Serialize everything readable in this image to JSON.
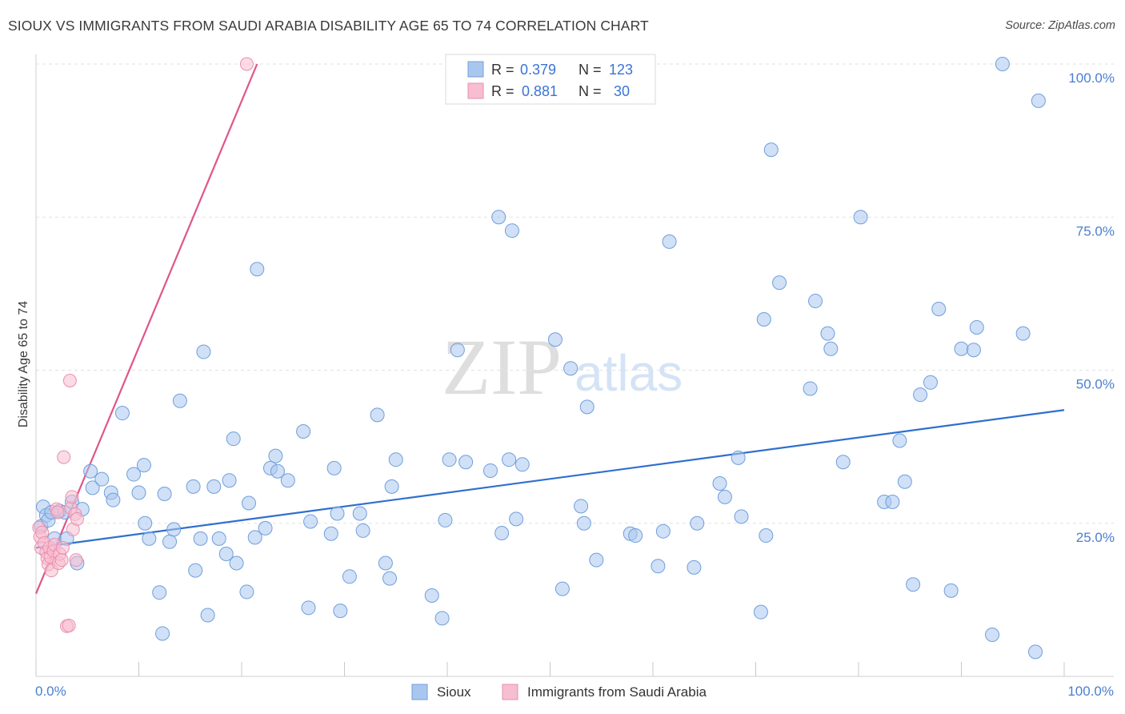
{
  "title": "SIOUX VS IMMIGRANTS FROM SAUDI ARABIA DISABILITY AGE 65 TO 74 CORRELATION CHART",
  "source": "Source: ZipAtlas.com",
  "watermark": {
    "zip": "ZIP",
    "atlas": "atlas"
  },
  "legend_top": {
    "rows": [
      {
        "r_label": "R =",
        "r_value": "0.379",
        "n_label": "N =",
        "n_value": "123"
      },
      {
        "r_label": "R =",
        "r_value": "0.881",
        "n_label": "N =",
        "n_value": "30"
      }
    ]
  },
  "legend_bottom": {
    "series_a": "Sioux",
    "series_b": "Immigrants from Saudi Arabia"
  },
  "colors": {
    "sioux_fill": "#a9c7ee",
    "sioux_stroke": "#6f9fdc",
    "sioux_line": "#2f6fcf",
    "saudi_fill": "#f7bdd0",
    "saudi_stroke": "#ea8fae",
    "saudi_line": "#e0558a",
    "grid": "#e2e2e2",
    "tick_text": "#4a7fd0"
  },
  "chart_data": {
    "type": "scatter",
    "title": "SIOUX VS IMMIGRANTS FROM SAUDI ARABIA DISABILITY AGE 65 TO 74 CORRELATION CHART",
    "xlabel": "",
    "ylabel": "Disability Age 65 to 74",
    "xlim": [
      0,
      100
    ],
    "ylim": [
      0,
      100
    ],
    "x_tick_labels": [
      "0.0%",
      "100.0%"
    ],
    "y_tick_labels": [
      "25.0%",
      "50.0%",
      "75.0%",
      "100.0%"
    ],
    "y_ticks": [
      25,
      50,
      75,
      100
    ],
    "grid": true,
    "legend_position": "top-center",
    "series": [
      {
        "name": "Sioux",
        "r": 0.379,
        "n": 123,
        "trend": {
          "x": [
            0,
            100
          ],
          "y": [
            21.0,
            43.5
          ]
        },
        "points": [
          [
            0.5,
            24.5
          ],
          [
            0.7,
            27.7
          ],
          [
            1.0,
            26.3
          ],
          [
            1.2,
            25.5
          ],
          [
            1.5,
            26.8
          ],
          [
            1.8,
            22.5
          ],
          [
            2.3,
            27.0
          ],
          [
            2.8,
            26.8
          ],
          [
            3.5,
            28.5
          ],
          [
            4.5,
            27.3
          ],
          [
            3.0,
            22.5
          ],
          [
            4.0,
            18.5
          ],
          [
            5.3,
            33.5
          ],
          [
            5.5,
            30.8
          ],
          [
            6.4,
            32.2
          ],
          [
            7.3,
            30.0
          ],
          [
            7.5,
            28.8
          ],
          [
            8.4,
            43.0
          ],
          [
            9.5,
            33.0
          ],
          [
            10.0,
            30.0
          ],
          [
            10.5,
            34.5
          ],
          [
            10.6,
            25.0
          ],
          [
            11.0,
            22.5
          ],
          [
            12.0,
            13.7
          ],
          [
            12.3,
            7.0
          ],
          [
            12.5,
            29.8
          ],
          [
            13.0,
            22.0
          ],
          [
            13.4,
            24.0
          ],
          [
            14.0,
            45.0
          ],
          [
            15.3,
            31.0
          ],
          [
            15.5,
            17.3
          ],
          [
            16.0,
            22.5
          ],
          [
            16.3,
            53.0
          ],
          [
            16.7,
            10.0
          ],
          [
            17.3,
            31.0
          ],
          [
            17.8,
            22.5
          ],
          [
            18.5,
            20.0
          ],
          [
            18.8,
            32.0
          ],
          [
            19.2,
            38.8
          ],
          [
            19.5,
            18.5
          ],
          [
            20.5,
            13.8
          ],
          [
            20.7,
            28.3
          ],
          [
            21.3,
            22.7
          ],
          [
            21.5,
            66.5
          ],
          [
            22.3,
            24.2
          ],
          [
            22.8,
            34.0
          ],
          [
            23.3,
            36.0
          ],
          [
            23.5,
            33.5
          ],
          [
            24.5,
            32.0
          ],
          [
            26.0,
            40.0
          ],
          [
            26.5,
            11.2
          ],
          [
            26.7,
            25.3
          ],
          [
            28.7,
            23.3
          ],
          [
            29.0,
            34.0
          ],
          [
            29.3,
            26.6
          ],
          [
            29.6,
            10.7
          ],
          [
            30.5,
            16.3
          ],
          [
            31.5,
            26.6
          ],
          [
            31.8,
            23.8
          ],
          [
            33.2,
            42.7
          ],
          [
            34.0,
            18.5
          ],
          [
            34.4,
            16.0
          ],
          [
            34.6,
            31.0
          ],
          [
            35.0,
            35.4
          ],
          [
            38.5,
            13.2
          ],
          [
            39.5,
            9.5
          ],
          [
            39.8,
            25.5
          ],
          [
            40.2,
            35.4
          ],
          [
            41.0,
            53.3
          ],
          [
            41.8,
            35.0
          ],
          [
            44.2,
            33.6
          ],
          [
            45.0,
            75.0
          ],
          [
            45.3,
            23.4
          ],
          [
            46.0,
            35.4
          ],
          [
            46.3,
            72.8
          ],
          [
            46.7,
            25.7
          ],
          [
            47.3,
            34.6
          ],
          [
            50.5,
            55.0
          ],
          [
            51.2,
            14.3
          ],
          [
            52.0,
            50.3
          ],
          [
            53.0,
            27.8
          ],
          [
            53.3,
            25.0
          ],
          [
            53.6,
            44.0
          ],
          [
            54.5,
            19.0
          ],
          [
            57.8,
            23.3
          ],
          [
            58.3,
            23.0
          ],
          [
            60.5,
            18.0
          ],
          [
            61.0,
            23.7
          ],
          [
            61.6,
            71.0
          ],
          [
            64.0,
            17.8
          ],
          [
            64.3,
            25.0
          ],
          [
            66.5,
            31.5
          ],
          [
            67.0,
            29.3
          ],
          [
            68.3,
            35.7
          ],
          [
            68.6,
            26.1
          ],
          [
            70.5,
            10.5
          ],
          [
            70.8,
            58.3
          ],
          [
            71.0,
            23.0
          ],
          [
            71.5,
            86.0
          ],
          [
            72.3,
            64.3
          ],
          [
            75.3,
            47.0
          ],
          [
            75.8,
            61.3
          ],
          [
            77.0,
            56.0
          ],
          [
            77.3,
            53.5
          ],
          [
            78.5,
            35.0
          ],
          [
            80.2,
            75.0
          ],
          [
            82.5,
            28.5
          ],
          [
            83.3,
            28.5
          ],
          [
            84.0,
            38.5
          ],
          [
            84.5,
            31.8
          ],
          [
            85.3,
            15.0
          ],
          [
            86.0,
            46.0
          ],
          [
            87.0,
            48.0
          ],
          [
            87.8,
            60.0
          ],
          [
            89.0,
            14.0
          ],
          [
            90.0,
            53.5
          ],
          [
            91.2,
            53.3
          ],
          [
            91.5,
            57.0
          ],
          [
            93.0,
            6.8
          ],
          [
            94.0,
            100.0
          ],
          [
            96.0,
            56.0
          ],
          [
            97.2,
            4.0
          ],
          [
            97.5,
            94.0
          ]
        ]
      },
      {
        "name": "Immigrants from Saudi Arabia",
        "r": 0.881,
        "n": 30,
        "trend": {
          "x": [
            0,
            21.5
          ],
          "y": [
            13.5,
            100.0
          ]
        },
        "points": [
          [
            0.3,
            24.3
          ],
          [
            0.4,
            22.8
          ],
          [
            0.5,
            21.0
          ],
          [
            0.6,
            23.5
          ],
          [
            0.8,
            21.8
          ],
          [
            1.0,
            20.3
          ],
          [
            1.1,
            19.3
          ],
          [
            1.2,
            18.3
          ],
          [
            1.3,
            21.0
          ],
          [
            1.4,
            19.5
          ],
          [
            1.5,
            17.3
          ],
          [
            1.7,
            20.5
          ],
          [
            1.8,
            21.5
          ],
          [
            2.0,
            27.3
          ],
          [
            2.1,
            26.8
          ],
          [
            2.2,
            18.5
          ],
          [
            2.3,
            20.0
          ],
          [
            2.5,
            19.0
          ],
          [
            2.6,
            21.0
          ],
          [
            2.7,
            35.8
          ],
          [
            3.0,
            8.2
          ],
          [
            3.2,
            8.3
          ],
          [
            3.3,
            48.3
          ],
          [
            3.4,
            27.5
          ],
          [
            3.5,
            29.3
          ],
          [
            3.6,
            24.0
          ],
          [
            3.8,
            26.5
          ],
          [
            3.9,
            19.0
          ],
          [
            4.0,
            25.7
          ],
          [
            20.5,
            100.0
          ]
        ]
      }
    ]
  }
}
